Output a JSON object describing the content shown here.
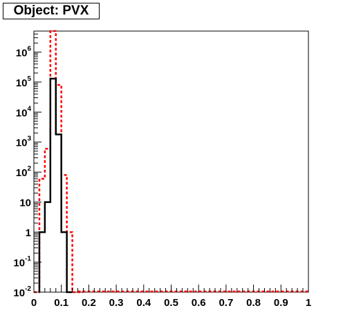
{
  "title": "Object: PVX",
  "chart_data": {
    "type": "histogram-step",
    "title": "Object: PVX",
    "xlim": [
      0,
      1
    ],
    "ylim": [
      0.01,
      5000000
    ],
    "yscale": "log",
    "x_ticks": [
      "0",
      "0.1",
      "0.2",
      "0.3",
      "0.4",
      "0.5",
      "0.6",
      "0.7",
      "0.8",
      "0.9",
      "1"
    ],
    "y_ticks": [
      {
        "value": 0.01,
        "base": "10",
        "exp": "-2"
      },
      {
        "value": 0.1,
        "base": "10",
        "exp": "-1"
      },
      {
        "value": 1,
        "base": "1",
        "exp": ""
      },
      {
        "value": 10,
        "base": "10",
        "exp": ""
      },
      {
        "value": 100,
        "base": "10",
        "exp": "2"
      },
      {
        "value": 1000,
        "base": "10",
        "exp": "3"
      },
      {
        "value": 10000,
        "base": "10",
        "exp": "4"
      },
      {
        "value": 100000,
        "base": "10",
        "exp": "5"
      },
      {
        "value": 1000000,
        "base": "10",
        "exp": "6"
      }
    ],
    "bin_width": 0.02,
    "series": [
      {
        "color": "#000000",
        "style": "solid",
        "bins": [
          {
            "x": 0.02,
            "y": 1
          },
          {
            "x": 0.04,
            "y": 10
          },
          {
            "x": 0.06,
            "y": 130000
          },
          {
            "x": 0.08,
            "y": 1800
          },
          {
            "x": 0.1,
            "y": 1
          },
          {
            "x": 0.12,
            "y": 0
          }
        ]
      },
      {
        "color": "#ff0000",
        "style": "dashed",
        "bins": [
          {
            "x": 0.0,
            "y": 0
          },
          {
            "x": 0.02,
            "y": 60
          },
          {
            "x": 0.04,
            "y": 600
          },
          {
            "x": 0.06,
            "y": 5000000
          },
          {
            "x": 0.08,
            "y": 80000
          },
          {
            "x": 0.1,
            "y": 80
          },
          {
            "x": 0.12,
            "y": 1
          },
          {
            "x": 0.14,
            "y": 0
          },
          {
            "x": 0.16,
            "y": 0
          }
        ]
      }
    ]
  }
}
